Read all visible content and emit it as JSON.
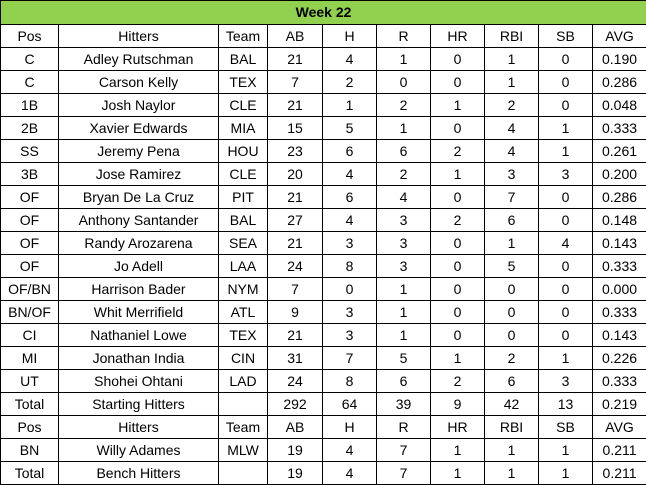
{
  "title": "Week 22",
  "header": [
    "Pos",
    "Hitters",
    "Team",
    "AB",
    "H",
    "R",
    "HR",
    "RBI",
    "SB",
    "AVG"
  ],
  "starters": [
    [
      "C",
      "Adley Rutschman",
      "BAL",
      "21",
      "4",
      "1",
      "0",
      "1",
      "0",
      "0.190"
    ],
    [
      "C",
      "Carson Kelly",
      "TEX",
      "7",
      "2",
      "0",
      "0",
      "1",
      "0",
      "0.286"
    ],
    [
      "1B",
      "Josh Naylor",
      "CLE",
      "21",
      "1",
      "2",
      "1",
      "2",
      "0",
      "0.048"
    ],
    [
      "2B",
      "Xavier Edwards",
      "MIA",
      "15",
      "5",
      "1",
      "0",
      "4",
      "1",
      "0.333"
    ],
    [
      "SS",
      "Jeremy Pena",
      "HOU",
      "23",
      "6",
      "6",
      "2",
      "4",
      "1",
      "0.261"
    ],
    [
      "3B",
      "Jose Ramirez",
      "CLE",
      "20",
      "4",
      "2",
      "1",
      "3",
      "3",
      "0.200"
    ],
    [
      "OF",
      "Bryan De La Cruz",
      "PIT",
      "21",
      "6",
      "4",
      "0",
      "7",
      "0",
      "0.286"
    ],
    [
      "OF",
      "Anthony Santander",
      "BAL",
      "27",
      "4",
      "3",
      "2",
      "6",
      "0",
      "0.148"
    ],
    [
      "OF",
      "Randy Arozarena",
      "SEA",
      "21",
      "3",
      "3",
      "0",
      "1",
      "4",
      "0.143"
    ],
    [
      "OF",
      "Jo Adell",
      "LAA",
      "24",
      "8",
      "3",
      "0",
      "5",
      "0",
      "0.333"
    ],
    [
      "OF/BN",
      "Harrison Bader",
      "NYM",
      "7",
      "0",
      "1",
      "0",
      "0",
      "0",
      "0.000"
    ],
    [
      "BN/OF",
      "Whit Merrifield",
      "ATL",
      "9",
      "3",
      "1",
      "0",
      "0",
      "0",
      "0.333"
    ],
    [
      "CI",
      "Nathaniel Lowe",
      "TEX",
      "21",
      "3",
      "1",
      "0",
      "0",
      "0",
      "0.143"
    ],
    [
      "MI",
      "Jonathan India",
      "CIN",
      "31",
      "7",
      "5",
      "1",
      "2",
      "1",
      "0.226"
    ],
    [
      "UT",
      "Shohei Ohtani",
      "LAD",
      "24",
      "8",
      "6",
      "2",
      "6",
      "3",
      "0.333"
    ]
  ],
  "starters_total": [
    "Total",
    "Starting Hitters",
    "",
    "292",
    "64",
    "39",
    "9",
    "42",
    "13",
    "0.219"
  ],
  "bench_header": [
    "Pos",
    "Hitters",
    "Team",
    "AB",
    "H",
    "R",
    "HR",
    "RBI",
    "SB",
    "AVG"
  ],
  "bench": [
    [
      "BN",
      "Willy Adames",
      "MLW",
      "19",
      "4",
      "7",
      "1",
      "1",
      "1",
      "0.211"
    ]
  ],
  "bench_total": [
    "Total",
    "Bench Hitters",
    "",
    "19",
    "4",
    "7",
    "1",
    "1",
    "1",
    "0.211"
  ],
  "colors": {
    "title_background": "#92d050",
    "border": "#000000"
  }
}
